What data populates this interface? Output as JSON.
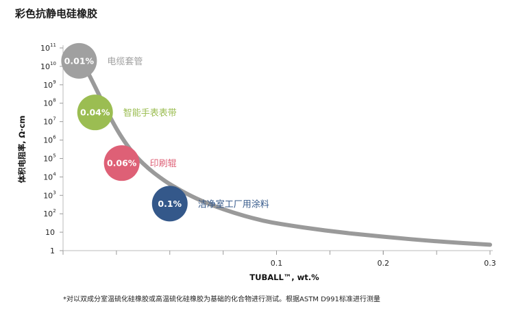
{
  "title": "彩色抗静电硅橡胶",
  "footnote": "*对以双成分室温硫化硅橡胶或高温硫化硅橡胶为基础的化合物进行测试。根据ASTM D991标准进行测量",
  "chart_data": {
    "type": "line",
    "xlabel": "TUBALL™, wt.%",
    "ylabel": "体积电阻率, Ω·cm",
    "xlim": [
      -0.1,
      0.3
    ],
    "ylim": [
      0,
      11
    ],
    "y_scale": "log",
    "x_ticks": [
      {
        "value": 0.1,
        "label": "0.1"
      },
      {
        "value": 0.2,
        "label": "0.2"
      },
      {
        "value": 0.3,
        "label": "0.3"
      }
    ],
    "y_ticks": [
      {
        "exp": 0,
        "base": "1",
        "sup": ""
      },
      {
        "exp": 1,
        "base": "10",
        "sup": ""
      },
      {
        "exp": 2,
        "base": "10",
        "sup": "2"
      },
      {
        "exp": 3,
        "base": "10",
        "sup": "3"
      },
      {
        "exp": 4,
        "base": "10",
        "sup": "4"
      },
      {
        "exp": 5,
        "base": "10",
        "sup": "5"
      },
      {
        "exp": 6,
        "base": "10",
        "sup": "6"
      },
      {
        "exp": 7,
        "base": "10",
        "sup": "7"
      },
      {
        "exp": 8,
        "base": "10",
        "sup": "8"
      },
      {
        "exp": 9,
        "base": "10",
        "sup": "9"
      },
      {
        "exp": 10,
        "base": "10",
        "sup": "10"
      },
      {
        "exp": 11,
        "base": "10",
        "sup": "11"
      }
    ],
    "curve_log10": [
      [
        -0.085,
        10.8
      ],
      [
        -0.08,
        10.05
      ],
      [
        -0.07,
        8.9
      ],
      [
        -0.06,
        7.7
      ],
      [
        -0.05,
        6.6
      ],
      [
        -0.04,
        5.7
      ],
      [
        -0.03,
        5.0
      ],
      [
        -0.02,
        4.45
      ],
      [
        -0.01,
        4.0
      ],
      [
        0.0,
        3.6
      ],
      [
        0.02,
        2.95
      ],
      [
        0.04,
        2.45
      ],
      [
        0.06,
        2.05
      ],
      [
        0.08,
        1.72
      ],
      [
        0.1,
        1.47
      ],
      [
        0.15,
        1.05
      ],
      [
        0.2,
        0.75
      ],
      [
        0.25,
        0.5
      ],
      [
        0.3,
        0.32
      ]
    ],
    "curve_color": "#9a9a9a",
    "points": [
      {
        "label": "0.01%",
        "x": -0.085,
        "log10": 10.3,
        "color": "#a0a0a0",
        "application": "电缆套管"
      },
      {
        "label": "0.04%",
        "x": -0.07,
        "log10": 7.5,
        "color": "#9bbd52",
        "application": "智能手表表带"
      },
      {
        "label": "0.06%",
        "x": -0.045,
        "log10": 4.75,
        "color": "#de6076",
        "application": "印刷辊"
      },
      {
        "label": "0.1%",
        "x": 0.0,
        "log10": 2.55,
        "color": "#34588a",
        "application": "洁净室工厂用涂料"
      }
    ]
  }
}
